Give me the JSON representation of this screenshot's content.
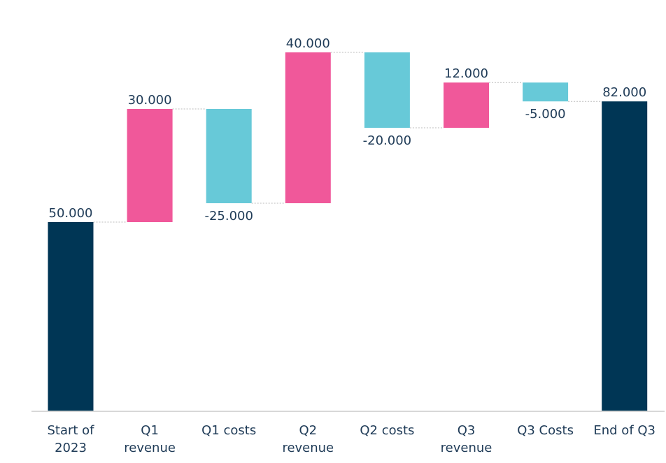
{
  "chart_data": {
    "type": "waterfall",
    "categories": [
      "Start of 2023",
      "Q1 revenue",
      "Q1 costs",
      "Q2 revenue",
      "Q2 costs",
      "Q3 revenue",
      "Q3 Costs",
      "End of Q3"
    ],
    "values": [
      50000,
      30000,
      -25000,
      40000,
      -20000,
      12000,
      -5000,
      82000
    ],
    "value_labels": [
      "50.000",
      "30.000",
      "-25.000",
      "40.000",
      "-20.000",
      "12.000",
      "-5.000",
      "82.000"
    ],
    "measure": [
      "absolute",
      "relative",
      "relative",
      "relative",
      "relative",
      "relative",
      "relative",
      "total"
    ],
    "total_color": "#003655",
    "increase_color": "#f0589a",
    "decrease_color": "#67c9d8",
    "ylim": [
      0,
      100000
    ]
  }
}
